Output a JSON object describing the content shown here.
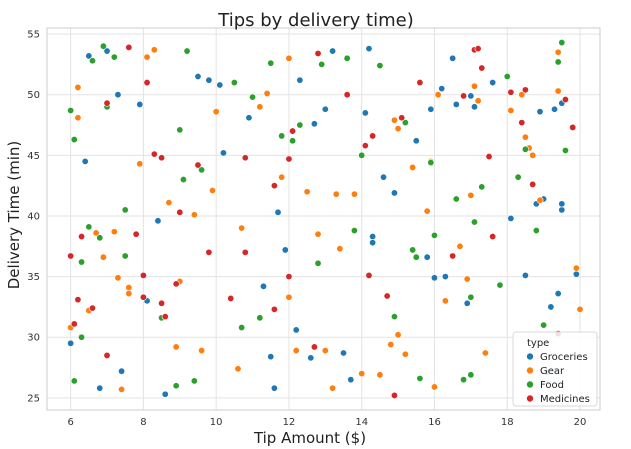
{
  "chart_data": {
    "type": "scatter",
    "title": "Tips by delivery time)",
    "xlabel": "Tip Amount ($)",
    "ylabel": "Delivery Time (min)",
    "xlim": [
      5.35,
      20.55
    ],
    "ylim": [
      24.0,
      55.5
    ],
    "xticks": [
      6,
      8,
      10,
      12,
      14,
      16,
      18,
      20
    ],
    "yticks": [
      25,
      30,
      35,
      40,
      45,
      50,
      55
    ],
    "grid": true,
    "legend": {
      "title": "type",
      "placement": "bottom-right"
    },
    "series": [
      {
        "name": "Groceries",
        "color": "#1f77b4",
        "points": [
          [
            6.0,
            29.5
          ],
          [
            6.4,
            44.5
          ],
          [
            6.5,
            53.2
          ],
          [
            6.8,
            25.8
          ],
          [
            7.0,
            53.6
          ],
          [
            7.3,
            50.0
          ],
          [
            7.4,
            27.2
          ],
          [
            7.9,
            49.2
          ],
          [
            8.1,
            33.0
          ],
          [
            8.4,
            39.6
          ],
          [
            8.6,
            25.3
          ],
          [
            9.5,
            51.5
          ],
          [
            9.8,
            51.2
          ],
          [
            10.1,
            50.8
          ],
          [
            10.2,
            45.2
          ],
          [
            10.9,
            48.1
          ],
          [
            11.3,
            34.2
          ],
          [
            11.5,
            28.4
          ],
          [
            11.6,
            25.8
          ],
          [
            11.7,
            40.3
          ],
          [
            11.9,
            37.2
          ],
          [
            12.2,
            30.6
          ],
          [
            12.3,
            51.2
          ],
          [
            12.6,
            28.3
          ],
          [
            12.7,
            47.6
          ],
          [
            13.0,
            48.8
          ],
          [
            13.2,
            53.6
          ],
          [
            13.5,
            28.7
          ],
          [
            13.7,
            26.5
          ],
          [
            14.1,
            48.5
          ],
          [
            14.2,
            53.8
          ],
          [
            14.3,
            38.3
          ],
          [
            14.3,
            37.8
          ],
          [
            14.6,
            43.2
          ],
          [
            14.9,
            41.9
          ],
          [
            15.5,
            46.2
          ],
          [
            15.8,
            36.6
          ],
          [
            15.9,
            48.8
          ],
          [
            16.0,
            34.9
          ],
          [
            16.2,
            50.5
          ],
          [
            16.3,
            35.0
          ],
          [
            16.5,
            53.0
          ],
          [
            16.6,
            49.2
          ],
          [
            16.9,
            32.8
          ],
          [
            17.0,
            49.9
          ],
          [
            17.1,
            49.0
          ],
          [
            17.6,
            51.0
          ],
          [
            18.1,
            39.8
          ],
          [
            18.5,
            35.1
          ],
          [
            18.8,
            41.0
          ],
          [
            18.9,
            48.6
          ],
          [
            19.0,
            41.4
          ],
          [
            19.1,
            27.1
          ],
          [
            19.2,
            32.5
          ],
          [
            19.3,
            48.8
          ],
          [
            19.4,
            33.6
          ],
          [
            19.5,
            49.3
          ],
          [
            19.5,
            40.5
          ],
          [
            19.5,
            41.0
          ],
          [
            19.9,
            35.2
          ]
        ]
      },
      {
        "name": "Gear",
        "color": "#ff7f0e",
        "points": [
          [
            6.0,
            30.8
          ],
          [
            6.2,
            50.6
          ],
          [
            6.2,
            48.1
          ],
          [
            6.5,
            32.2
          ],
          [
            6.7,
            38.6
          ],
          [
            6.9,
            36.6
          ],
          [
            7.2,
            38.7
          ],
          [
            7.3,
            34.9
          ],
          [
            7.4,
            25.7
          ],
          [
            7.6,
            33.6
          ],
          [
            7.6,
            34.1
          ],
          [
            7.9,
            44.3
          ],
          [
            8.1,
            53.1
          ],
          [
            8.3,
            53.7
          ],
          [
            8.5,
            31.6
          ],
          [
            8.7,
            41.1
          ],
          [
            8.9,
            29.2
          ],
          [
            9.0,
            34.6
          ],
          [
            9.4,
            40.1
          ],
          [
            9.6,
            28.9
          ],
          [
            9.9,
            42.1
          ],
          [
            10.0,
            48.6
          ],
          [
            10.6,
            27.4
          ],
          [
            10.7,
            39.0
          ],
          [
            11.2,
            49.0
          ],
          [
            11.4,
            50.1
          ],
          [
            11.8,
            43.2
          ],
          [
            12.0,
            53.0
          ],
          [
            12.0,
            33.3
          ],
          [
            12.2,
            28.9
          ],
          [
            12.5,
            42.0
          ],
          [
            12.8,
            38.5
          ],
          [
            13.0,
            28.9
          ],
          [
            13.2,
            25.8
          ],
          [
            13.3,
            41.8
          ],
          [
            13.4,
            37.3
          ],
          [
            13.8,
            41.8
          ],
          [
            14.0,
            27.0
          ],
          [
            14.5,
            26.9
          ],
          [
            14.8,
            29.4
          ],
          [
            14.9,
            47.9
          ],
          [
            15.0,
            30.2
          ],
          [
            15.0,
            47.2
          ],
          [
            15.2,
            28.6
          ],
          [
            15.4,
            44.0
          ],
          [
            15.8,
            40.4
          ],
          [
            15.9,
            44.5
          ],
          [
            16.0,
            25.9
          ],
          [
            16.1,
            50.0
          ],
          [
            16.3,
            33.0
          ],
          [
            16.7,
            37.5
          ],
          [
            16.9,
            34.8
          ],
          [
            17.0,
            41.7
          ],
          [
            17.1,
            50.7
          ],
          [
            17.2,
            49.5
          ],
          [
            17.4,
            28.7
          ],
          [
            18.1,
            48.7
          ],
          [
            18.4,
            50.0
          ],
          [
            18.5,
            46.5
          ],
          [
            18.6,
            45.6
          ],
          [
            18.7,
            45.0
          ],
          [
            18.9,
            41.3
          ],
          [
            19.4,
            53.5
          ],
          [
            19.4,
            50.3
          ],
          [
            19.9,
            35.7
          ],
          [
            20.0,
            32.3
          ]
        ]
      },
      {
        "name": "Food",
        "color": "#2ca02c",
        "points": [
          [
            6.0,
            48.7
          ],
          [
            6.1,
            26.4
          ],
          [
            6.1,
            46.3
          ],
          [
            6.3,
            30.0
          ],
          [
            6.3,
            36.2
          ],
          [
            6.5,
            39.1
          ],
          [
            6.6,
            52.8
          ],
          [
            6.8,
            38.2
          ],
          [
            6.9,
            54.0
          ],
          [
            7.0,
            49.0
          ],
          [
            7.2,
            53.1
          ],
          [
            7.5,
            36.7
          ],
          [
            7.5,
            40.5
          ],
          [
            8.5,
            31.6
          ],
          [
            8.9,
            26.0
          ],
          [
            9.0,
            47.1
          ],
          [
            9.1,
            43.0
          ],
          [
            9.2,
            53.6
          ],
          [
            9.4,
            26.4
          ],
          [
            9.6,
            43.8
          ],
          [
            10.5,
            51.0
          ],
          [
            10.7,
            30.8
          ],
          [
            11.0,
            49.8
          ],
          [
            11.2,
            31.6
          ],
          [
            11.5,
            52.6
          ],
          [
            11.8,
            46.6
          ],
          [
            12.1,
            46.2
          ],
          [
            12.3,
            47.5
          ],
          [
            12.8,
            36.1
          ],
          [
            12.9,
            52.5
          ],
          [
            13.6,
            53.0
          ],
          [
            13.8,
            38.8
          ],
          [
            14.0,
            45.0
          ],
          [
            14.5,
            52.4
          ],
          [
            14.9,
            31.7
          ],
          [
            15.2,
            47.7
          ],
          [
            15.4,
            37.2
          ],
          [
            15.5,
            36.6
          ],
          [
            15.6,
            26.6
          ],
          [
            15.9,
            44.4
          ],
          [
            16.0,
            38.4
          ],
          [
            16.6,
            41.4
          ],
          [
            16.8,
            26.5
          ],
          [
            17.0,
            33.3
          ],
          [
            17.0,
            26.9
          ],
          [
            17.1,
            39.5
          ],
          [
            17.3,
            42.4
          ],
          [
            17.8,
            34.3
          ],
          [
            18.0,
            51.5
          ],
          [
            18.3,
            43.2
          ],
          [
            18.5,
            45.5
          ],
          [
            18.8,
            38.8
          ],
          [
            19.0,
            31.0
          ],
          [
            19.4,
            52.7
          ],
          [
            19.5,
            54.3
          ],
          [
            19.6,
            45.4
          ]
        ]
      },
      {
        "name": "Medicines",
        "color": "#d62728",
        "points": [
          [
            6.0,
            36.7
          ],
          [
            6.1,
            31.1
          ],
          [
            6.2,
            33.1
          ],
          [
            6.3,
            38.3
          ],
          [
            6.6,
            32.4
          ],
          [
            7.0,
            28.5
          ],
          [
            7.0,
            49.3
          ],
          [
            7.6,
            53.9
          ],
          [
            7.8,
            38.5
          ],
          [
            8.0,
            35.1
          ],
          [
            8.0,
            33.3
          ],
          [
            8.1,
            51.0
          ],
          [
            8.3,
            45.1
          ],
          [
            8.5,
            44.8
          ],
          [
            8.5,
            32.8
          ],
          [
            8.6,
            31.7
          ],
          [
            8.9,
            34.4
          ],
          [
            9.0,
            40.3
          ],
          [
            9.5,
            44.2
          ],
          [
            9.8,
            37.0
          ],
          [
            10.4,
            33.2
          ],
          [
            10.8,
            37.0
          ],
          [
            10.8,
            44.8
          ],
          [
            11.6,
            42.5
          ],
          [
            11.6,
            32.3
          ],
          [
            12.0,
            44.7
          ],
          [
            12.0,
            35.0
          ],
          [
            12.1,
            47.0
          ],
          [
            12.7,
            29.2
          ],
          [
            12.8,
            53.4
          ],
          [
            13.6,
            50.0
          ],
          [
            14.1,
            45.8
          ],
          [
            14.2,
            35.1
          ],
          [
            14.3,
            46.6
          ],
          [
            14.7,
            33.4
          ],
          [
            14.9,
            25.2
          ],
          [
            15.1,
            48.1
          ],
          [
            15.6,
            51.0
          ],
          [
            16.5,
            36.7
          ],
          [
            16.8,
            49.9
          ],
          [
            17.1,
            53.7
          ],
          [
            17.2,
            53.8
          ],
          [
            17.3,
            52.2
          ],
          [
            17.5,
            44.9
          ],
          [
            17.6,
            38.3
          ],
          [
            18.1,
            50.2
          ],
          [
            18.4,
            47.7
          ],
          [
            18.5,
            50.4
          ],
          [
            18.7,
            42.6
          ],
          [
            19.4,
            30.3
          ],
          [
            19.6,
            49.6
          ],
          [
            19.8,
            47.3
          ]
        ]
      }
    ]
  }
}
